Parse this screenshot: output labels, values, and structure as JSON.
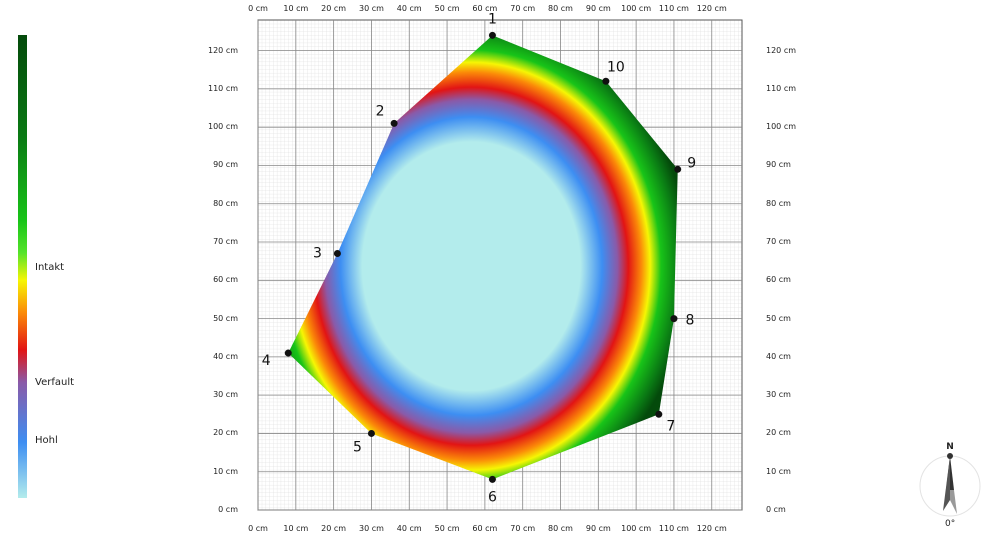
{
  "legend": {
    "labels": [
      {
        "key": "intakt",
        "text": "Intakt"
      },
      {
        "key": "verfault",
        "text": "Verfault"
      },
      {
        "key": "hohl",
        "text": "Hohl"
      }
    ]
  },
  "compass": {
    "north_label": "N",
    "bearing": "0°"
  },
  "chart_data": {
    "type": "heatmap",
    "title": "",
    "xlabel": "",
    "ylabel": "",
    "unit": "cm",
    "xlim": [
      0,
      128
    ],
    "ylim": [
      0,
      128
    ],
    "x_ticks": [
      "0 cm",
      "10 cm",
      "20 cm",
      "30 cm",
      "40 cm",
      "50 cm",
      "60 cm",
      "70 cm",
      "80 cm",
      "90 cm",
      "100 cm",
      "110 cm",
      "120 cm"
    ],
    "y_ticks": [
      "0 cm",
      "10 cm",
      "20 cm",
      "30 cm",
      "40 cm",
      "50 cm",
      "60 cm",
      "70 cm",
      "80 cm",
      "90 cm",
      "100 cm",
      "110 cm",
      "120 cm"
    ],
    "grid": true,
    "scale": [
      "Intakt",
      "Verfault",
      "Hohl"
    ],
    "measurement_points": [
      {
        "label": "1",
        "x": 62,
        "y": 124
      },
      {
        "label": "2",
        "x": 36,
        "y": 101
      },
      {
        "label": "3",
        "x": 21,
        "y": 67
      },
      {
        "label": "4",
        "x": 8,
        "y": 41
      },
      {
        "label": "5",
        "x": 30,
        "y": 20
      },
      {
        "label": "6",
        "x": 62,
        "y": 8
      },
      {
        "label": "7",
        "x": 106,
        "y": 25
      },
      {
        "label": "8",
        "x": 110,
        "y": 50
      },
      {
        "label": "9",
        "x": 111,
        "y": 89
      },
      {
        "label": "10",
        "x": 92,
        "y": 112
      }
    ]
  }
}
